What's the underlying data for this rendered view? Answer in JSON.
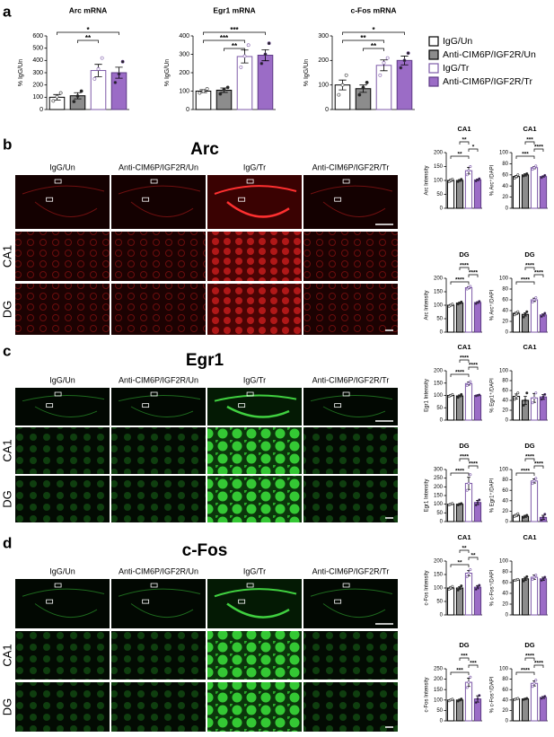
{
  "panels": [
    {
      "letter": "a"
    },
    {
      "letter": "b",
      "title": "Arc",
      "columns": [
        "IgG/Un",
        "Anti-CIM6P/IGF2R/Un",
        "IgG/Tr",
        "Anti-CIM6P/IGF2R/Tr"
      ],
      "rows": [
        "CA1",
        "DG"
      ]
    },
    {
      "letter": "c",
      "title": "Egr1",
      "columns": [
        "IgG/Un",
        "Anti-CIM6P/IGF2R/Un",
        "IgG/Tr",
        "Anti-CIM6P/IGF2R/Tr"
      ],
      "rows": [
        "CA1",
        "DG"
      ]
    },
    {
      "letter": "d",
      "title": "c-Fos",
      "columns": [
        "IgG/Un",
        "Anti-CIM6P/IGF2R/Un",
        "IgG/Tr",
        "Anti-CIM6P/IGF2R/Tr"
      ],
      "rows": [
        "CA1",
        "DG"
      ]
    }
  ],
  "legend": [
    {
      "name": "IgG/Un",
      "fill": "#ffffff",
      "stroke": "#000000"
    },
    {
      "name": "Anti-CIM6P/IGF2R/Un",
      "fill": "#8c8c8c",
      "stroke": "#000000"
    },
    {
      "name": "IgG/Tr",
      "fill": "#ffffff",
      "stroke": "#7d5aa8"
    },
    {
      "name": "Anti-CIM6P/IGF2R/Tr",
      "fill": "#9b6cc6",
      "stroke": "#5e3b86"
    }
  ],
  "chart_data": [
    {
      "type": "bar",
      "title": "Arc mRNA",
      "ylabel": "% IgG/Un",
      "ylim": [
        0,
        600
      ],
      "yticks": [
        0,
        100,
        200,
        300,
        400,
        500,
        600
      ],
      "values": [
        100,
        112,
        318,
        300
      ],
      "errors": [
        22,
        25,
        50,
        45
      ],
      "points": [
        [
          70,
          105,
          135
        ],
        [
          65,
          110,
          150
        ],
        [
          250,
          330,
          420
        ],
        [
          220,
          290,
          390
        ]
      ],
      "annotations": [
        {
          "label": "*",
          "span": [
            0,
            3
          ]
        },
        {
          "label": "**",
          "span": [
            1,
            2
          ]
        }
      ]
    },
    {
      "type": "bar",
      "title": "Egr1 mRNA",
      "ylabel": "% IgG/Un",
      "ylim": [
        0,
        400
      ],
      "yticks": [
        0,
        100,
        200,
        300,
        400
      ],
      "values": [
        100,
        105,
        288,
        295
      ],
      "errors": [
        8,
        12,
        35,
        30
      ],
      "points": [
        [
          90,
          100,
          112
        ],
        [
          85,
          110,
          120
        ],
        [
          230,
          290,
          350
        ],
        [
          250,
          300,
          360
        ]
      ],
      "annotations": [
        {
          "label": "***",
          "span": [
            0,
            3
          ]
        },
        {
          "label": "***",
          "span": [
            0,
            2
          ]
        },
        {
          "label": "**",
          "span": [
            1,
            2
          ]
        }
      ]
    },
    {
      "type": "bar",
      "title": "c-Fos mRNA",
      "ylabel": "% IgG/Un",
      "ylim": [
        0,
        300
      ],
      "yticks": [
        0,
        100,
        200,
        300
      ],
      "values": [
        100,
        85,
        180,
        200
      ],
      "errors": [
        20,
        15,
        22,
        18
      ],
      "points": [
        [
          60,
          100,
          140
        ],
        [
          60,
          90,
          110
        ],
        [
          140,
          190,
          210
        ],
        [
          170,
          200,
          230
        ]
      ],
      "annotations": [
        {
          "label": "*",
          "span": [
            0,
            3
          ]
        },
        {
          "label": "**",
          "span": [
            0,
            2
          ]
        },
        {
          "label": "**",
          "span": [
            1,
            2
          ]
        }
      ]
    },
    {
      "type": "bar",
      "title": "CA1",
      "ylabel": "Arc Intensity",
      "ylim": [
        0,
        200
      ],
      "yticks": [
        0,
        50,
        100,
        150,
        200
      ],
      "values": [
        100,
        100,
        135,
        102
      ],
      "errors": [
        4,
        3,
        12,
        3
      ],
      "points": [
        [
          95,
          100,
          105
        ],
        [
          96,
          100,
          104
        ],
        [
          120,
          135,
          150
        ],
        [
          98,
          102,
          106
        ]
      ],
      "annotations": [
        {
          "label": "**",
          "span": [
            1,
            2
          ]
        },
        {
          "label": "*",
          "span": [
            2,
            3
          ]
        },
        {
          "label": "**",
          "span": [
            0,
            2
          ]
        }
      ]
    },
    {
      "type": "bar",
      "title": "CA1",
      "ylabel": "% Arc⁺/DAPI",
      "ylim": [
        0,
        100
      ],
      "yticks": [
        0,
        20,
        40,
        60,
        80,
        100
      ],
      "values": [
        57,
        60,
        73,
        57
      ],
      "errors": [
        2,
        2,
        2,
        1
      ],
      "points": [
        [
          54,
          57,
          60
        ],
        [
          58,
          60,
          62
        ],
        [
          70,
          73,
          76
        ],
        [
          55,
          57,
          59
        ]
      ],
      "annotations": [
        {
          "label": "***",
          "span": [
            1,
            2
          ]
        },
        {
          "label": "****",
          "span": [
            2,
            3
          ]
        },
        {
          "label": "***",
          "span": [
            0,
            2
          ]
        }
      ]
    },
    {
      "type": "bar",
      "title": "DG",
      "ylabel": "Arc Intensity",
      "ylim": [
        0,
        200
      ],
      "yticks": [
        0,
        50,
        100,
        150,
        200
      ],
      "values": [
        100,
        108,
        165,
        110
      ],
      "errors": [
        3,
        3,
        4,
        3
      ],
      "points": [
        [
          96,
          100,
          104
        ],
        [
          104,
          108,
          112
        ],
        [
          160,
          165,
          170
        ],
        [
          106,
          110,
          114
        ]
      ],
      "annotations": [
        {
          "label": "****",
          "span": [
            1,
            2
          ]
        },
        {
          "label": "****",
          "span": [
            2,
            3
          ]
        },
        {
          "label": "****",
          "span": [
            0,
            2
          ]
        }
      ]
    },
    {
      "type": "bar",
      "title": "DG",
      "ylabel": "% Arc⁺/DAPI",
      "ylim": [
        0,
        100
      ],
      "yticks": [
        0,
        20,
        40,
        60,
        80,
        100
      ],
      "values": [
        35,
        33,
        60,
        32
      ],
      "errors": [
        2,
        3,
        3,
        2
      ],
      "points": [
        [
          32,
          35,
          38
        ],
        [
          28,
          33,
          38
        ],
        [
          56,
          60,
          64
        ],
        [
          29,
          32,
          35
        ]
      ],
      "annotations": [
        {
          "label": "****",
          "span": [
            1,
            2
          ]
        },
        {
          "label": "****",
          "span": [
            2,
            3
          ]
        },
        {
          "label": "****",
          "span": [
            0,
            2
          ]
        }
      ]
    },
    {
      "type": "bar",
      "title": "CA1",
      "ylabel": "Egr1 Intensity",
      "ylim": [
        0,
        200
      ],
      "yticks": [
        0,
        50,
        100,
        150,
        200
      ],
      "values": [
        100,
        98,
        148,
        100
      ],
      "errors": [
        3,
        4,
        6,
        2
      ],
      "points": [
        [
          96,
          100,
          104
        ],
        [
          92,
          98,
          104
        ],
        [
          140,
          148,
          156
        ],
        [
          98,
          100,
          102
        ]
      ],
      "annotations": [
        {
          "label": "****",
          "span": [
            1,
            2
          ]
        },
        {
          "label": "****",
          "span": [
            2,
            3
          ]
        },
        {
          "label": "****",
          "span": [
            0,
            2
          ]
        }
      ]
    },
    {
      "type": "bar",
      "title": "CA1",
      "ylabel": "% Egr1⁺/DAPI",
      "ylim": [
        0,
        100
      ],
      "yticks": [
        0,
        20,
        40,
        60,
        80,
        100
      ],
      "values": [
        48,
        40,
        45,
        47
      ],
      "errors": [
        5,
        8,
        9,
        5
      ],
      "points": [
        [
          42,
          48,
          55
        ],
        [
          30,
          40,
          55
        ],
        [
          35,
          45,
          55
        ],
        [
          42,
          47,
          52
        ]
      ],
      "annotations": []
    },
    {
      "type": "bar",
      "title": "DG",
      "ylabel": "Egr1 Intensity",
      "ylim": [
        0,
        300
      ],
      "yticks": [
        0,
        50,
        100,
        150,
        200,
        250,
        300
      ],
      "values": [
        100,
        100,
        220,
        110
      ],
      "errors": [
        4,
        4,
        35,
        12
      ],
      "points": [
        [
          96,
          100,
          104
        ],
        [
          96,
          100,
          104
        ],
        [
          180,
          220,
          270
        ],
        [
          95,
          110,
          125
        ]
      ],
      "annotations": [
        {
          "label": "****",
          "span": [
            1,
            2
          ]
        },
        {
          "label": "****",
          "span": [
            2,
            3
          ]
        },
        {
          "label": "****",
          "span": [
            0,
            2
          ]
        }
      ]
    },
    {
      "type": "bar",
      "title": "DG",
      "ylabel": "% Egr1⁺/DAPI",
      "ylim": [
        0,
        100
      ],
      "yticks": [
        0,
        20,
        40,
        60,
        80,
        100
      ],
      "values": [
        12,
        10,
        78,
        8
      ],
      "errors": [
        2,
        2,
        4,
        4
      ],
      "points": [
        [
          10,
          12,
          15
        ],
        [
          8,
          10,
          12
        ],
        [
          73,
          78,
          83
        ],
        [
          3,
          8,
          14
        ]
      ],
      "annotations": [
        {
          "label": "****",
          "span": [
            1,
            2
          ]
        },
        {
          "label": "****",
          "span": [
            2,
            3
          ]
        },
        {
          "label": "****",
          "span": [
            0,
            2
          ]
        }
      ]
    },
    {
      "type": "bar",
      "title": "CA1",
      "ylabel": "c-Fos Intensity",
      "ylim": [
        0,
        200
      ],
      "yticks": [
        0,
        50,
        100,
        150,
        200
      ],
      "values": [
        100,
        100,
        155,
        103
      ],
      "errors": [
        4,
        5,
        10,
        6
      ],
      "points": [
        [
          95,
          100,
          106
        ],
        [
          92,
          100,
          108
        ],
        [
          142,
          155,
          168
        ],
        [
          95,
          103,
          110
        ]
      ],
      "annotations": [
        {
          "label": "**",
          "span": [
            1,
            2
          ]
        },
        {
          "label": "**",
          "span": [
            2,
            3
          ]
        },
        {
          "label": "**",
          "span": [
            0,
            2
          ]
        }
      ]
    },
    {
      "type": "bar",
      "title": "CA1",
      "ylabel": "% c-Fos⁺/DAPI",
      "ylim": [
        0,
        100
      ],
      "yticks": [
        0,
        20,
        40,
        60,
        80,
        100
      ],
      "values": [
        65,
        67,
        70,
        67
      ],
      "errors": [
        1,
        3,
        4,
        3
      ],
      "points": [
        [
          64,
          65,
          66
        ],
        [
          63,
          67,
          71
        ],
        [
          66,
          70,
          74
        ],
        [
          64,
          67,
          70
        ]
      ],
      "annotations": []
    },
    {
      "type": "bar",
      "title": "DG",
      "ylabel": "c-Fos Intensity",
      "ylim": [
        0,
        250
      ],
      "yticks": [
        0,
        50,
        100,
        150,
        200,
        250
      ],
      "values": [
        100,
        100,
        185,
        105
      ],
      "errors": [
        3,
        4,
        20,
        15
      ],
      "points": [
        [
          96,
          100,
          104
        ],
        [
          95,
          100,
          105
        ],
        [
          160,
          185,
          210
        ],
        [
          88,
          105,
          122
        ]
      ],
      "annotations": [
        {
          "label": "***",
          "span": [
            1,
            2
          ]
        },
        {
          "label": "***",
          "span": [
            2,
            3
          ]
        },
        {
          "label": "***",
          "span": [
            0,
            2
          ]
        }
      ]
    },
    {
      "type": "bar",
      "title": "DG",
      "ylabel": "% c-Fos⁺/DAPI",
      "ylim": [
        0,
        100
      ],
      "yticks": [
        0,
        20,
        40,
        60,
        80,
        100
      ],
      "values": [
        42,
        42,
        72,
        45
      ],
      "errors": [
        1,
        1,
        5,
        2
      ],
      "points": [
        [
          41,
          42,
          43
        ],
        [
          41,
          42,
          43
        ],
        [
          66,
          72,
          78
        ],
        [
          43,
          45,
          47
        ]
      ],
      "annotations": [
        {
          "label": "****",
          "span": [
            1,
            2
          ]
        },
        {
          "label": "****",
          "span": [
            2,
            3
          ]
        },
        {
          "label": "****",
          "span": [
            0,
            2
          ]
        }
      ]
    }
  ]
}
